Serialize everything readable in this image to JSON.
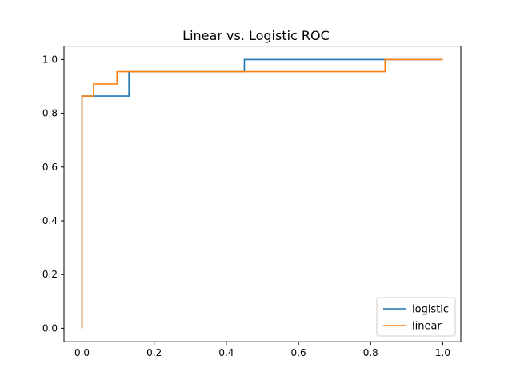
{
  "chart_data": {
    "type": "line",
    "title": "Linear vs. Logistic ROC",
    "xlabel": "",
    "ylabel": "",
    "xlim": [
      -0.05,
      1.05
    ],
    "ylim": [
      -0.05,
      1.05
    ],
    "xticks": [
      0.0,
      0.2,
      0.4,
      0.6,
      0.8,
      1.0
    ],
    "yticks": [
      0.0,
      0.2,
      0.4,
      0.6,
      0.8,
      1.0
    ],
    "xtick_labels": [
      "0.0",
      "0.2",
      "0.4",
      "0.6",
      "0.8",
      "1.0"
    ],
    "ytick_labels": [
      "0.0",
      "0.2",
      "0.4",
      "0.6",
      "0.8",
      "1.0"
    ],
    "grid": false,
    "legend_position": "lower-right",
    "series": [
      {
        "name": "logistic",
        "color": "#1f77b4",
        "x": [
          0.0,
          0.0,
          0.13,
          0.13,
          0.45,
          0.45,
          1.0
        ],
        "y": [
          0.0,
          0.864,
          0.864,
          0.955,
          0.955,
          1.0,
          1.0
        ]
      },
      {
        "name": "linear",
        "color": "#ff7f0e",
        "x": [
          0.0,
          0.0,
          0.032,
          0.032,
          0.097,
          0.097,
          0.84,
          0.84,
          1.0
        ],
        "y": [
          0.0,
          0.864,
          0.864,
          0.909,
          0.909,
          0.955,
          0.955,
          1.0,
          1.0
        ]
      }
    ]
  }
}
